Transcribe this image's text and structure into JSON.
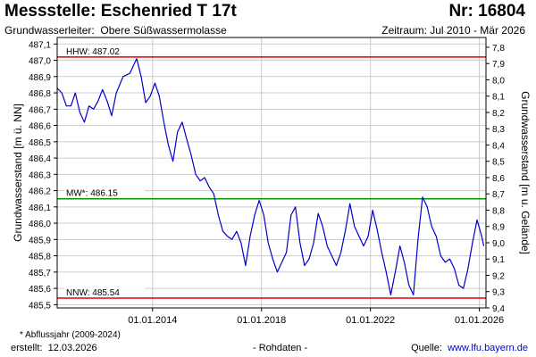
{
  "header": {
    "title": "Messstelle: Eschenried T 17t",
    "nr": "Nr: 16804",
    "aquifer_label": "Grundwasserleiter:",
    "aquifer_value": "Obere Süßwassermolasse",
    "period": "Zeitraum: Jul 2010 - Mär 2026"
  },
  "footer": {
    "footnote": "* Abflussjahr (2009-2024)",
    "created_label": "erstellt:",
    "created_date": "12.03.2026",
    "raw_data": "- Rohdaten -",
    "source_label": "Quelle:",
    "source_link": "www.lfu.bayern.de"
  },
  "colors": {
    "series": "#0000cc",
    "hhw_line": "#dd0000",
    "nnw_line": "#dd0000",
    "mw_line": "#009900",
    "grid": "#cccccc",
    "axis": "#000000"
  },
  "chart_data": {
    "type": "line",
    "xlabel": "",
    "ylabel": "Grundwasserstand [m ü. NN]",
    "ylabel_right": "Grundwasserstand [m u. Gelände]",
    "xlim": [
      "2010-07-01",
      "2026-03-31"
    ],
    "ylim": [
      485.48,
      487.14
    ],
    "ylim_right": [
      7.74,
      9.4
    ],
    "grid": true,
    "x_ticks": [
      "01.01.2014",
      "01.01.2018",
      "01.01.2022",
      "01.01.2026"
    ],
    "y_ticks": [
      "487,1",
      "487,0",
      "486,9",
      "486,8",
      "486,7",
      "486,6",
      "486,5",
      "486,4",
      "486,3",
      "486,2",
      "486,1",
      "486,0",
      "485,9",
      "485,8",
      "485,7",
      "485,6",
      "485,5"
    ],
    "y_ticks_right": [
      "7,8",
      "7,9",
      "8,0",
      "8,1",
      "8,2",
      "8,3",
      "8,4",
      "8,5",
      "8,6",
      "8,7",
      "8,8",
      "8,9",
      "9,0",
      "9,1",
      "9,2",
      "9,3",
      "9,4"
    ],
    "reference_lines": [
      {
        "label": "HHW: 487.02",
        "value": 487.02,
        "color": "#dd0000"
      },
      {
        "label": "MW*: 486.15",
        "value": 486.15,
        "color": "#009900"
      },
      {
        "label": "NNW: 485.54",
        "value": 485.54,
        "color": "#dd0000"
      }
    ],
    "series": [
      {
        "color": "#0000cc",
        "points": [
          [
            "2010-07-01",
            486.83
          ],
          [
            "2010-09-01",
            486.8
          ],
          [
            "2010-11-01",
            486.72
          ],
          [
            "2011-01-01",
            486.72
          ],
          [
            "2011-03-01",
            486.8
          ],
          [
            "2011-05-01",
            486.68
          ],
          [
            "2011-07-01",
            486.62
          ],
          [
            "2011-09-01",
            486.72
          ],
          [
            "2011-11-01",
            486.7
          ],
          [
            "2012-01-01",
            486.75
          ],
          [
            "2012-03-01",
            486.82
          ],
          [
            "2012-05-01",
            486.75
          ],
          [
            "2012-07-01",
            486.66
          ],
          [
            "2012-09-01",
            486.8
          ],
          [
            "2012-12-01",
            486.9
          ],
          [
            "2013-03-01",
            486.92
          ],
          [
            "2013-06-01",
            487.01
          ],
          [
            "2013-08-01",
            486.9
          ],
          [
            "2013-10-01",
            486.74
          ],
          [
            "2013-12-01",
            486.78
          ],
          [
            "2014-02-01",
            486.86
          ],
          [
            "2014-04-01",
            486.78
          ],
          [
            "2014-06-01",
            486.62
          ],
          [
            "2014-08-01",
            486.48
          ],
          [
            "2014-10-01",
            486.38
          ],
          [
            "2014-12-01",
            486.56
          ],
          [
            "2015-02-01",
            486.62
          ],
          [
            "2015-04-01",
            486.52
          ],
          [
            "2015-06-01",
            486.42
          ],
          [
            "2015-08-01",
            486.3
          ],
          [
            "2015-10-01",
            486.26
          ],
          [
            "2015-12-01",
            486.28
          ],
          [
            "2016-02-01",
            486.22
          ],
          [
            "2016-04-01",
            486.18
          ],
          [
            "2016-06-01",
            486.05
          ],
          [
            "2016-08-01",
            485.95
          ],
          [
            "2016-10-01",
            485.92
          ],
          [
            "2016-12-01",
            485.9
          ],
          [
            "2017-02-01",
            485.95
          ],
          [
            "2017-04-01",
            485.88
          ],
          [
            "2017-06-01",
            485.74
          ],
          [
            "2017-08-01",
            485.92
          ],
          [
            "2017-10-01",
            486.05
          ],
          [
            "2017-12-01",
            486.14
          ],
          [
            "2018-02-01",
            486.05
          ],
          [
            "2018-04-01",
            485.88
          ],
          [
            "2018-06-01",
            485.78
          ],
          [
            "2018-08-01",
            485.7
          ],
          [
            "2018-10-01",
            485.76
          ],
          [
            "2018-12-01",
            485.82
          ],
          [
            "2019-02-01",
            486.05
          ],
          [
            "2019-04-01",
            486.1
          ],
          [
            "2019-06-01",
            485.88
          ],
          [
            "2019-08-01",
            485.74
          ],
          [
            "2019-10-01",
            485.78
          ],
          [
            "2019-12-01",
            485.88
          ],
          [
            "2020-02-01",
            486.06
          ],
          [
            "2020-04-01",
            485.98
          ],
          [
            "2020-06-01",
            485.86
          ],
          [
            "2020-08-01",
            485.8
          ],
          [
            "2020-10-01",
            485.74
          ],
          [
            "2020-12-01",
            485.82
          ],
          [
            "2021-02-01",
            485.96
          ],
          [
            "2021-04-01",
            486.12
          ],
          [
            "2021-06-01",
            485.98
          ],
          [
            "2021-08-01",
            485.92
          ],
          [
            "2021-10-01",
            485.86
          ],
          [
            "2021-12-01",
            485.92
          ],
          [
            "2022-02-01",
            486.08
          ],
          [
            "2022-04-01",
            485.96
          ],
          [
            "2022-06-01",
            485.82
          ],
          [
            "2022-08-01",
            485.7
          ],
          [
            "2022-10-01",
            485.56
          ],
          [
            "2022-12-01",
            485.7
          ],
          [
            "2023-02-01",
            485.86
          ],
          [
            "2023-04-01",
            485.76
          ],
          [
            "2023-06-01",
            485.62
          ],
          [
            "2023-08-01",
            485.56
          ],
          [
            "2023-10-01",
            485.9
          ],
          [
            "2023-12-01",
            486.16
          ],
          [
            "2024-02-01",
            486.1
          ],
          [
            "2024-04-01",
            485.98
          ],
          [
            "2024-06-01",
            485.92
          ],
          [
            "2024-08-01",
            485.8
          ],
          [
            "2024-10-01",
            485.76
          ],
          [
            "2024-12-01",
            485.78
          ],
          [
            "2025-02-01",
            485.72
          ],
          [
            "2025-04-01",
            485.62
          ],
          [
            "2025-06-01",
            485.6
          ],
          [
            "2025-08-01",
            485.72
          ],
          [
            "2025-10-01",
            485.88
          ],
          [
            "2025-12-01",
            486.02
          ],
          [
            "2026-02-01",
            485.92
          ],
          [
            "2026-03-01",
            485.86
          ]
        ]
      }
    ]
  }
}
